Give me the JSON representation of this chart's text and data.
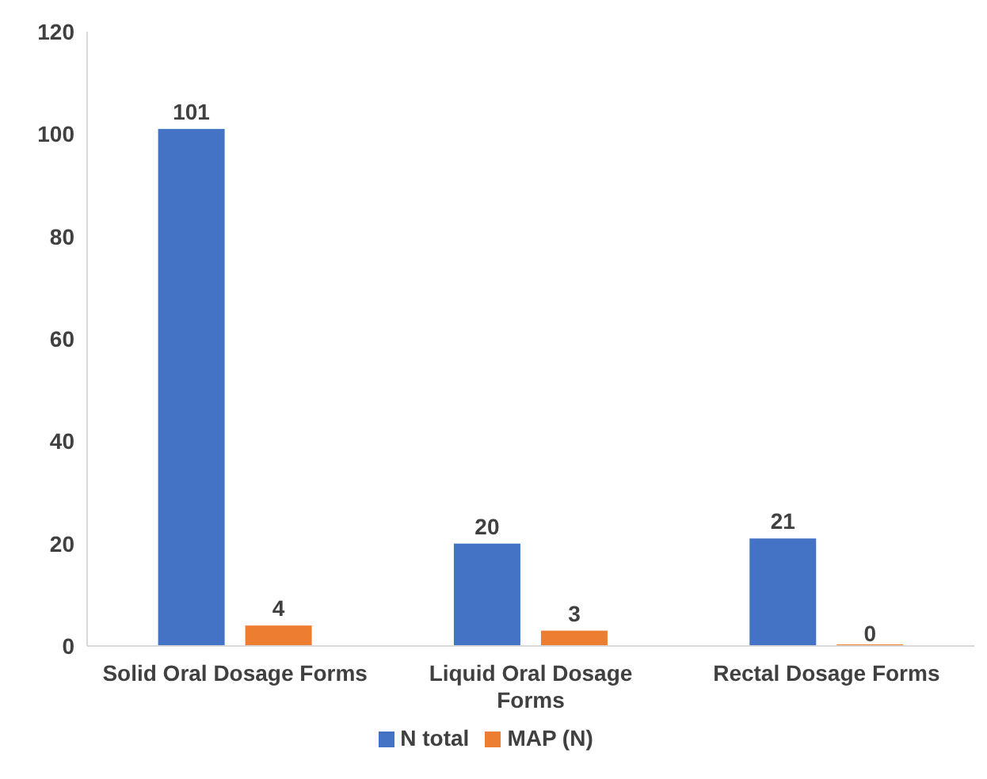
{
  "chart_data": {
    "type": "bar",
    "categories": [
      "Solid Oral Dosage Forms",
      "Liquid Oral Dosage Forms",
      "Rectal Dosage Forms"
    ],
    "series": [
      {
        "name": "N total",
        "color": "#4472c4",
        "values": [
          101,
          20,
          21
        ]
      },
      {
        "name": "MAP (N)",
        "color": "#ed7d31",
        "values": [
          4,
          3,
          0
        ]
      }
    ],
    "ylim": [
      0,
      120
    ],
    "yticks": [
      0,
      20,
      40,
      60,
      80,
      100,
      120
    ],
    "legend": "bottom",
    "data_labels": true
  }
}
